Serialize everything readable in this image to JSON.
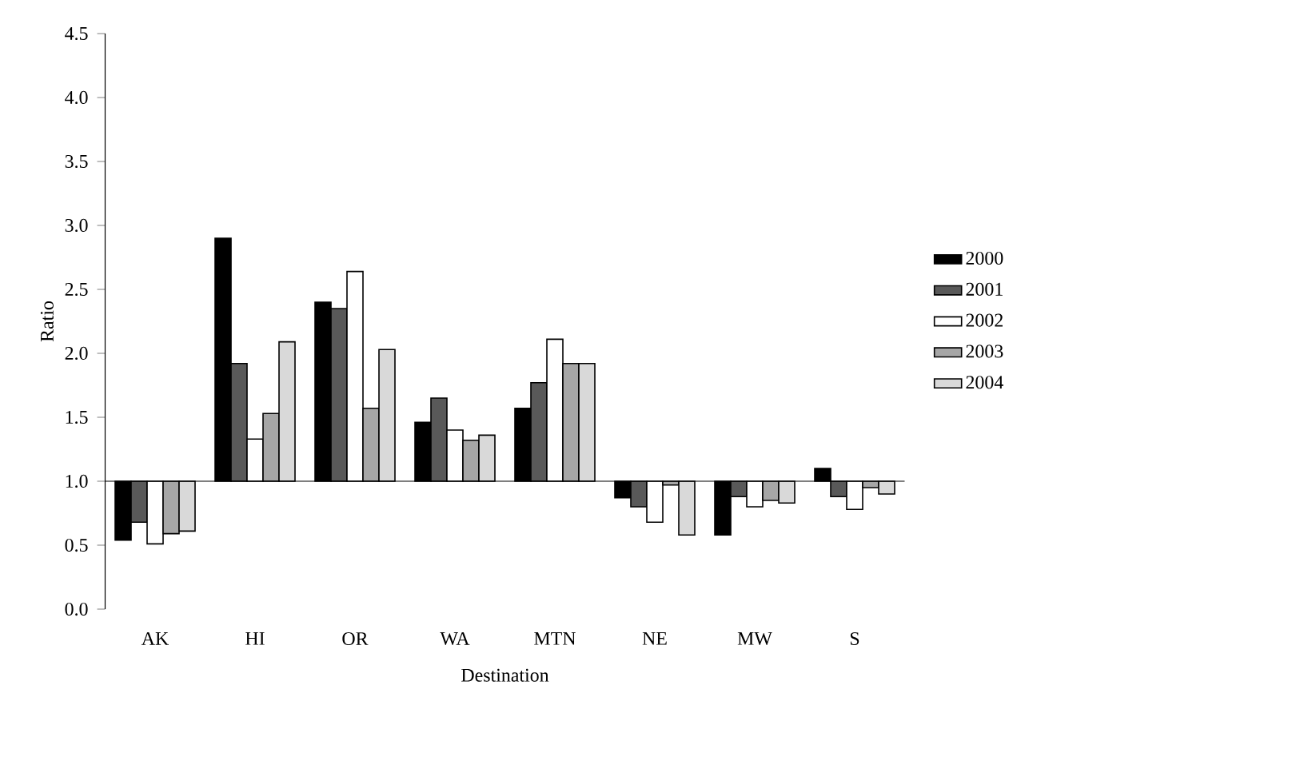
{
  "chart_data": {
    "type": "bar",
    "xlabel": "Destination",
    "ylabel": "Ratio",
    "categories": [
      "AK",
      "HI",
      "OR",
      "WA",
      "MTN",
      "NE",
      "MW",
      "S"
    ],
    "series": [
      {
        "name": "2000",
        "color": "#000000",
        "base": [
          1,
          1,
          1,
          1,
          1,
          1,
          1,
          1
        ],
        "values": [
          -0.46,
          1.9,
          1.4,
          0.46,
          0.57,
          -0.13,
          -0.42,
          0.1
        ]
      },
      {
        "name": "2001",
        "color": "#595959",
        "base": [
          1,
          1,
          1,
          1,
          1,
          1,
          1,
          1
        ],
        "values": [
          -0.32,
          0.92,
          1.35,
          0.65,
          0.77,
          -0.2,
          -0.12,
          -0.12
        ]
      },
      {
        "name": "2002",
        "color": "#ffffff",
        "base": [
          1,
          1,
          1,
          1,
          1,
          1,
          1,
          1
        ],
        "values": [
          -0.49,
          0.33,
          1.64,
          0.4,
          1.11,
          -0.32,
          -0.2,
          -0.22
        ]
      },
      {
        "name": "2003",
        "color": "#a6a6a6",
        "base": [
          1,
          1,
          1,
          1,
          1,
          1,
          1,
          1
        ],
        "values": [
          -0.41,
          0.53,
          0.57,
          0.32,
          0.92,
          -0.03,
          -0.15,
          -0.05
        ]
      },
      {
        "name": "2004",
        "color": "#d9d9d9",
        "base": [
          1,
          1,
          1,
          1,
          1,
          1,
          1,
          1
        ],
        "values": [
          -0.39,
          1.09,
          1.03,
          0.36,
          0.92,
          -0.42,
          -0.17,
          -0.1
        ]
      }
    ],
    "ylim": [
      0,
      4.5
    ],
    "yticks": [
      {
        "value": 0,
        "label": "0.0"
      },
      {
        "value": 0.5,
        "label": "0.5"
      },
      {
        "value": 1,
        "label": "1.0"
      },
      {
        "value": 1.5,
        "label": "1.5"
      },
      {
        "value": 2,
        "label": "2.0"
      },
      {
        "value": 2.5,
        "label": "2.5"
      },
      {
        "value": 3,
        "label": "3.0"
      },
      {
        "value": 3.5,
        "label": "3.5"
      },
      {
        "value": 4,
        "label": "4.0"
      },
      {
        "value": 4.5,
        "label": "4.5"
      }
    ],
    "legend": "right"
  }
}
